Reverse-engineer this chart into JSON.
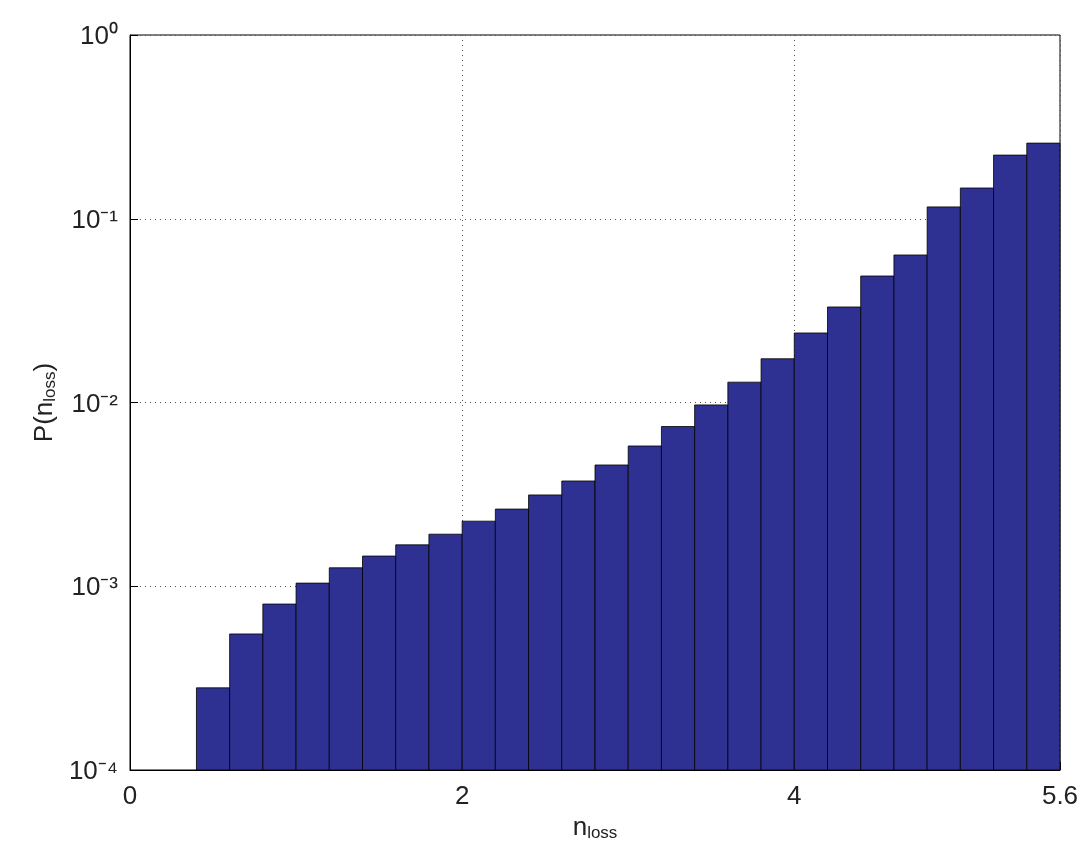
{
  "chart_data": {
    "type": "histogram",
    "xlabel": "n$_{loss}$",
    "ylabel": "P(n$_{loss}$)",
    "color": "#2e3192",
    "bins": [
      0.4,
      0.6,
      0.8,
      1.0,
      1.2,
      1.4,
      1.6,
      1.8,
      2.0,
      2.2,
      2.4,
      2.6,
      2.8,
      3.0,
      3.2,
      3.4,
      3.6,
      3.8,
      4.0,
      4.2,
      4.4,
      4.6,
      4.8,
      5.0,
      5.2,
      5.4,
      5.6
    ],
    "values": [
      0.00028,
      0.00055,
      0.0008,
      0.00104,
      0.00126,
      0.00146,
      0.00168,
      0.00192,
      0.00226,
      0.00263,
      0.00314,
      0.00374,
      0.00457,
      0.0058,
      0.0074,
      0.0097,
      0.0129,
      0.0173,
      0.0239,
      0.0331,
      0.0488,
      0.0635,
      0.116,
      0.147,
      0.222,
      0.258
    ],
    "xlim": [
      0,
      5.6
    ],
    "xticks": [
      0,
      2,
      4,
      5.6
    ],
    "ylim": [
      0.0001,
      1
    ],
    "yticks": [
      {
        "value": 0.0001,
        "label": "10⁻⁴"
      },
      {
        "value": 0.001,
        "label": "10⁻³"
      },
      {
        "value": 0.01,
        "label": "10⁻²"
      },
      {
        "value": 0.1,
        "label": "10⁻¹"
      },
      {
        "value": 1,
        "label": "10⁰"
      }
    ],
    "log": "y",
    "grid": true
  }
}
